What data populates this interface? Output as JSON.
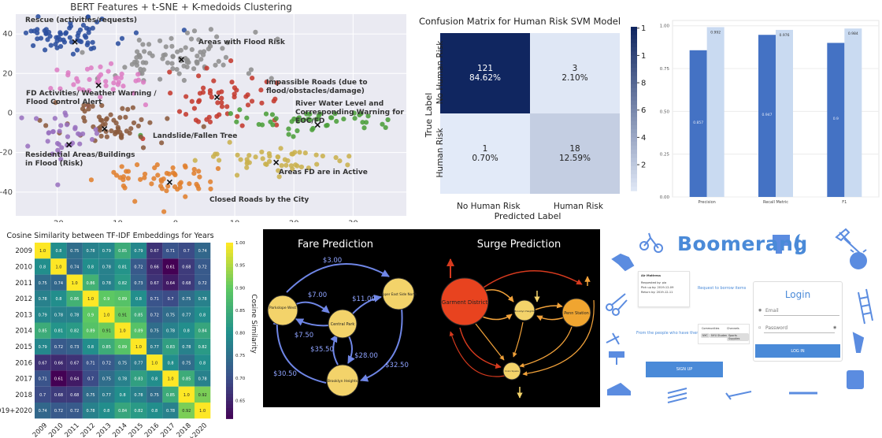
{
  "chart_data": [
    {
      "type": "scatter",
      "title": "BERT Features + t-SNE + K-medoids Clustering",
      "xlabel": "",
      "ylabel": "",
      "xlim": [
        -27,
        39
      ],
      "ylim": [
        -52,
        50
      ],
      "xticks": [
        -20,
        -10,
        0,
        10,
        20,
        30
      ],
      "yticks": [
        -40,
        -20,
        0,
        20,
        40
      ],
      "grid": true,
      "clusters": [
        {
          "label": "Rescue (activities/requests)",
          "color": "#2b4f9e",
          "medoid": [
            -17,
            36
          ],
          "center": [
            -18,
            40
          ],
          "spread": [
            5,
            5
          ],
          "n": 70
        },
        {
          "label": "Areas with Flood Risk",
          "color": "#8e8e8e",
          "medoid": [
            1,
            27
          ],
          "center": [
            0,
            28
          ],
          "spread": [
            7,
            7
          ],
          "n": 85
        },
        {
          "label": "FD Activities/ Weather Warning / Flood Control Alert",
          "color": "#dd7dc4",
          "medoid": [
            -13,
            14
          ],
          "center": [
            -12,
            16
          ],
          "spread": [
            4,
            5
          ],
          "n": 40
        },
        {
          "label": "Impassible Roads (due to flood/obstacles/damage)",
          "color": "#c43a2f",
          "medoid": [
            7,
            8
          ],
          "center": [
            8,
            8
          ],
          "spread": [
            5,
            6
          ],
          "n": 55
        },
        {
          "label": "River Water Level and Corresponding Warning for EOC/FD",
          "color": "#4b9e3a",
          "medoid": [
            24,
            -6
          ],
          "center": [
            24,
            -4
          ],
          "spread": [
            7,
            3
          ],
          "n": 50
        },
        {
          "label": "Landslide/Fallen Tree",
          "color": "#8b5a3c",
          "medoid": [
            -12,
            -8
          ],
          "center": [
            -11,
            -6
          ],
          "spread": [
            5,
            5
          ],
          "n": 60
        },
        {
          "label": "Residential Areas/Buildings in Flood (Risk)",
          "color": "#9a72bf",
          "medoid": [
            -18,
            -16
          ],
          "center": [
            -19,
            -12
          ],
          "spread": [
            4,
            6
          ],
          "n": 35
        },
        {
          "label": "Areas FD are in Active",
          "color": "#c9b04d",
          "medoid": [
            17,
            -25
          ],
          "center": [
            17,
            -24
          ],
          "spread": [
            6,
            4
          ],
          "n": 50
        },
        {
          "label": "Closed Roads by the City",
          "color": "#e07f2e",
          "medoid": [
            -1,
            -35
          ],
          "center": [
            -2,
            -34
          ],
          "spread": [
            5,
            5
          ],
          "n": 55
        }
      ]
    },
    {
      "type": "heatmap",
      "title": "Confusion Matrix for Human Risk SVM Model",
      "xlabel": "Predicted Label",
      "ylabel": "True Label",
      "x_categories": [
        "No Human Risk",
        "Human Risk"
      ],
      "y_categories": [
        "No Human Risk",
        "Human Risk"
      ],
      "values": [
        [
          121,
          3
        ],
        [
          1,
          18
        ]
      ],
      "percent_labels": [
        [
          "84.62%",
          "2.10%"
        ],
        [
          "0.70%",
          "12.59%"
        ]
      ],
      "colorbar_ticks": [
        20,
        40,
        60,
        80,
        100,
        120
      ],
      "colorbar_range": [
        1,
        121
      ]
    },
    {
      "type": "bar",
      "title": "",
      "categories": [
        "Precision",
        "Recall Metric",
        "F1"
      ],
      "ylim": [
        0,
        1.0
      ],
      "yticks": [
        "0.00",
        "0.25",
        "0.50",
        "0.75",
        "1.00"
      ],
      "series": [
        {
          "values": [
            0.857,
            0.947,
            0.9
          ],
          "labels": [
            "0.857",
            "0.947",
            "0.9"
          ],
          "color": "#4472c4"
        },
        {
          "values": [
            0.992,
            0.976,
            0.984
          ],
          "labels": [
            "0.992",
            "0.976",
            "0.984"
          ],
          "color": "#c9daf1"
        }
      ]
    },
    {
      "type": "heatmap",
      "title": "Cosine Similarity between TF-IDF Embeddings for Years",
      "categories": [
        "2009",
        "2010",
        "2011",
        "2012",
        "2013",
        "2014",
        "2015",
        "2016",
        "2017",
        "2018",
        "2019+2020"
      ],
      "colorbar_label": "Cosine Similarity",
      "colorbar_ticks": [
        "1.00",
        "0.95",
        "0.90",
        "0.85",
        "0.80",
        "0.75",
        "0.70",
        "0.65"
      ],
      "colorbar_range": [
        0.61,
        1.0
      ],
      "values": [
        [
          1.0,
          0.8,
          0.75,
          0.78,
          0.79,
          0.85,
          0.79,
          0.67,
          0.71,
          0.7,
          0.74
        ],
        [
          0.8,
          1.0,
          0.74,
          0.8,
          0.78,
          0.81,
          0.72,
          0.66,
          0.61,
          0.68,
          0.72
        ],
        [
          0.75,
          0.74,
          1.0,
          0.86,
          0.78,
          0.82,
          0.73,
          0.67,
          0.64,
          0.68,
          0.72
        ],
        [
          0.78,
          0.8,
          0.86,
          1.0,
          0.9,
          0.89,
          0.8,
          0.71,
          0.7,
          0.75,
          0.78
        ],
        [
          0.79,
          0.78,
          0.78,
          0.9,
          1.0,
          0.91,
          0.85,
          0.72,
          0.75,
          0.77,
          0.8
        ],
        [
          0.85,
          0.81,
          0.82,
          0.89,
          0.91,
          1.0,
          0.89,
          0.75,
          0.78,
          0.8,
          0.84
        ],
        [
          0.79,
          0.72,
          0.73,
          0.8,
          0.85,
          0.89,
          1.0,
          0.77,
          0.83,
          0.78,
          0.82
        ],
        [
          0.67,
          0.66,
          0.67,
          0.71,
          0.72,
          0.75,
          0.77,
          1.0,
          0.8,
          0.75,
          0.8
        ],
        [
          0.71,
          0.61,
          0.64,
          0.7,
          0.75,
          0.78,
          0.83,
          0.8,
          1.0,
          0.85,
          0.78
        ],
        [
          0.7,
          0.68,
          0.68,
          0.75,
          0.77,
          0.8,
          0.78,
          0.75,
          0.85,
          1.0,
          0.92
        ],
        [
          0.74,
          0.72,
          0.72,
          0.78,
          0.8,
          0.84,
          0.82,
          0.8,
          0.78,
          0.92,
          1.0
        ]
      ]
    }
  ],
  "graphs": {
    "fare_title": "Fare Prediction",
    "surge_title": "Surge Prediction",
    "fare_nodes": [
      {
        "id": "parkslope",
        "label": "Parkslope West"
      },
      {
        "id": "central",
        "label": "Central Park"
      },
      {
        "id": "upper",
        "label": "Upper East Side North"
      },
      {
        "id": "brooklyn",
        "label": "Brooklyn Heights"
      }
    ],
    "fare_edges": [
      {
        "from": "parkslope",
        "to": "upper",
        "label": "$3.00"
      },
      {
        "from": "parkslope",
        "to": "central",
        "label": "$7.00"
      },
      {
        "from": "central",
        "to": "upper",
        "label": "$11.00"
      },
      {
        "from": "central",
        "to": "parkslope",
        "label": "$7.50"
      },
      {
        "from": "brooklyn",
        "to": "central",
        "label": "$35.50"
      },
      {
        "from": "central",
        "to": "brooklyn",
        "label": "$28.00"
      },
      {
        "from": "upper",
        "to": "brooklyn",
        "label": "$32.50"
      },
      {
        "from": "brooklyn",
        "to": "parkslope",
        "label": "$30.50"
      }
    ],
    "surge_nodes": [
      {
        "id": "garment",
        "label": "Garment District"
      },
      {
        "id": "brooklyn",
        "label": "Brooklyn Heights"
      },
      {
        "id": "penn",
        "label": "Penn Station"
      },
      {
        "id": "small",
        "label": "Union Square"
      }
    ]
  },
  "boomerang": {
    "logo": "Boomerang",
    "tagline_right": "Request to borrow items",
    "tagline_left": "From the people who have them",
    "item_card": {
      "title": "Air Mattress",
      "requested_by": "Requested by: pia",
      "pickup": "Pick up by: 2019-12-09",
      "return": "Return by: 2019-12-11"
    },
    "communities_label": "Communities",
    "channels_label": "Channels",
    "chips": [
      "NYC",
      "NYU Students",
      "Sports Supplies"
    ],
    "signup_label": "SIGN UP",
    "login": {
      "title": "Login",
      "email_placeholder": "Email",
      "password_placeholder": "Password",
      "button_label": "LOG IN"
    },
    "icons": [
      "bicycle-icon",
      "hammer-icon",
      "shirt-icon",
      "drill-icon",
      "alarm-clock-icon",
      "scissors-icon",
      "ladder-icon",
      "paint-roller-icon",
      "umbrella-icon",
      "hair-dryer-icon",
      "shoe-icon",
      "books-icon",
      "wrench-icon",
      "rolling-pin-icon",
      "calculator-icon"
    ]
  }
}
